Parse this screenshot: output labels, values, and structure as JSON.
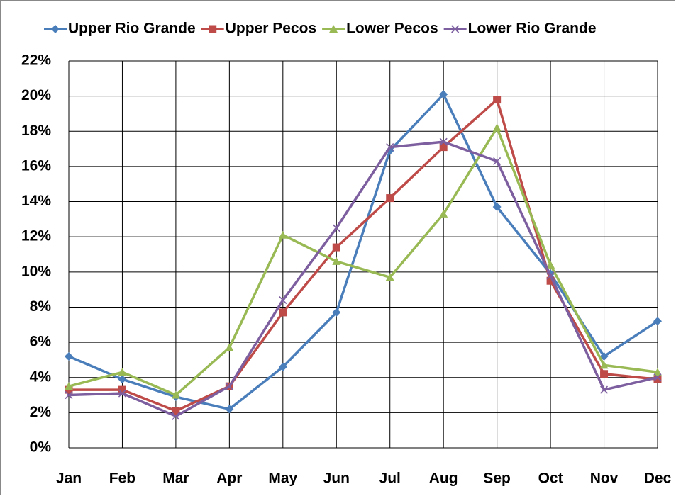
{
  "chart_data": {
    "type": "line",
    "categories": [
      "Jan",
      "Feb",
      "Mar",
      "Apr",
      "May",
      "Jun",
      "Jul",
      "Aug",
      "Sep",
      "Oct",
      "Nov",
      "Dec"
    ],
    "series": [
      {
        "name": "Upper Rio Grande",
        "color": "#4a7ebb",
        "marker": "diamond",
        "values": [
          5.2,
          3.9,
          2.9,
          2.2,
          4.6,
          7.7,
          16.9,
          20.1,
          13.7,
          9.9,
          5.2,
          7.2
        ]
      },
      {
        "name": "Upper Pecos",
        "color": "#be4b48",
        "marker": "square",
        "values": [
          3.3,
          3.3,
          2.1,
          3.5,
          7.7,
          11.4,
          14.2,
          17.1,
          19.8,
          9.5,
          4.2,
          3.9
        ]
      },
      {
        "name": "Lower Pecos",
        "color": "#98b954",
        "marker": "triangle",
        "values": [
          3.5,
          4.3,
          3.0,
          5.7,
          12.1,
          10.6,
          9.7,
          13.3,
          18.2,
          10.4,
          4.7,
          4.3
        ]
      },
      {
        "name": "Lower Rio Grande",
        "color": "#7d5fa0",
        "marker": "x",
        "values": [
          3.0,
          3.1,
          1.8,
          3.5,
          8.4,
          12.5,
          17.1,
          17.4,
          16.3,
          9.8,
          3.3,
          4.0
        ]
      }
    ],
    "ylim": [
      0,
      22
    ],
    "yticks": [
      {
        "value": 0,
        "label": "0%"
      },
      {
        "value": 2,
        "label": "2%"
      },
      {
        "value": 4,
        "label": "4%"
      },
      {
        "value": 6,
        "label": "6%"
      },
      {
        "value": 8,
        "label": "8%"
      },
      {
        "value": 10,
        "label": "10%"
      },
      {
        "value": 12,
        "label": "12%"
      },
      {
        "value": 14,
        "label": "14%"
      },
      {
        "value": 16,
        "label": "16%"
      },
      {
        "value": 18,
        "label": "18%"
      },
      {
        "value": 20,
        "label": "20%"
      },
      {
        "value": 22,
        "label": "22%"
      }
    ],
    "grid": true,
    "legend": "top"
  }
}
